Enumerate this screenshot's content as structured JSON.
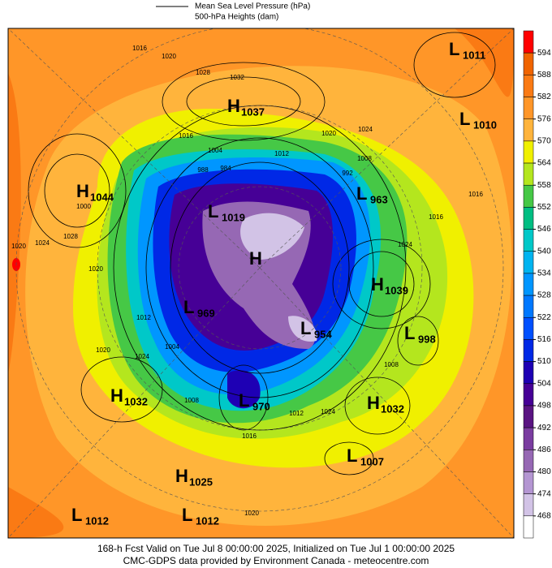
{
  "legend": {
    "items": [
      "Mean Sea Level Pressure (hPa)",
      "500-hPa Heights (dam)"
    ]
  },
  "colorbar": {
    "ticks": [
      594,
      588,
      582,
      576,
      570,
      564,
      558,
      552,
      546,
      540,
      534,
      528,
      522,
      516,
      510,
      504,
      498,
      492,
      486,
      480,
      474,
      468
    ],
    "colors": [
      "#ff0000",
      "#f06400",
      "#fa7a14",
      "#ff9628",
      "#ffb43c",
      "#f0f000",
      "#b4e61e",
      "#46c846",
      "#00be82",
      "#00c8c8",
      "#00b4f0",
      "#0096ff",
      "#0078ff",
      "#0050ff",
      "#0028e6",
      "#1e00b4",
      "#460096",
      "#5a1482",
      "#7a3ca0",
      "#9668b4",
      "#b496d2",
      "#d2c3e6",
      "#ffffff"
    ]
  },
  "centers": [
    {
      "type": "L",
      "value": 1011
    },
    {
      "type": "L",
      "value": 1010
    },
    {
      "type": "H",
      "value": 1037
    },
    {
      "type": "H",
      "value": 1044
    },
    {
      "type": "L",
      "value": 963
    },
    {
      "type": "L",
      "value": 1019
    },
    {
      "type": "H"
    },
    {
      "type": "H",
      "value": 1039
    },
    {
      "type": "L",
      "value": 969
    },
    {
      "type": "L",
      "value": 954
    },
    {
      "type": "L",
      "value": 998
    },
    {
      "type": "H",
      "value": 1032
    },
    {
      "type": "L",
      "value": 970
    },
    {
      "type": "H",
      "value": 1032
    },
    {
      "type": "L",
      "value": 1007
    },
    {
      "type": "H",
      "value": 1025
    },
    {
      "type": "L",
      "value": 1012
    },
    {
      "type": "L",
      "value": 1012
    }
  ],
  "contour_labels": [
    1016,
    1020,
    1028,
    1032,
    1016,
    1004,
    1012,
    1020,
    1024,
    1008,
    1016,
    1016,
    1024,
    1020,
    1024,
    1028,
    1020,
    1012,
    1020,
    1024,
    1004,
    1008,
    1016,
    1012,
    1024,
    1008,
    1020,
    992,
    988,
    984,
    1000
  ],
  "footer": [
    "168-h Fcst Valid on Tue Jul  8 00:00:00 2025, Initialized on Tue Jul  1 00:00:00 2025",
    "CMC-GDPS data provided by Environment Canada - meteocentre.com"
  ]
}
